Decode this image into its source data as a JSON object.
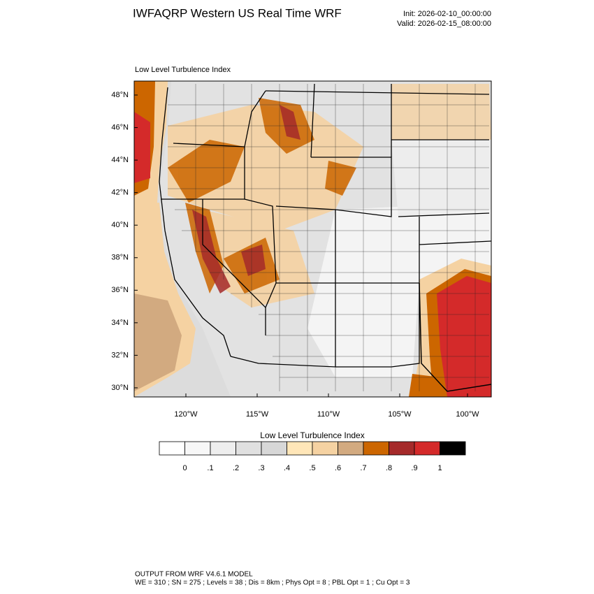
{
  "header": {
    "title": "IWFAQRP Western US Real Time WRF",
    "init": "Init: 2026-02-10_00:00:00",
    "valid": "Valid: 2026-02-15_08:00:00"
  },
  "panel": {
    "title": "Low Level Turbulence Index",
    "lat_labels": [
      "48°N",
      "46°N",
      "44°N",
      "42°N",
      "40°N",
      "38°N",
      "36°N",
      "34°N",
      "32°N",
      "30°N"
    ],
    "lon_labels": [
      "120°W",
      "115°W",
      "110°W",
      "105°W",
      "100°W"
    ]
  },
  "colorbar": {
    "title": "Low Level Turbulence Index",
    "labels": [
      "0",
      ".1",
      ".2",
      ".3",
      ".4",
      ".5",
      ".6",
      ".7",
      ".8",
      ".9",
      "1"
    ],
    "colors": [
      "#ffffff",
      "#f7f7f7",
      "#eeeeee",
      "#e0e0e0",
      "#d7d7d7",
      "#ffe6b8",
      "#f5d2a2",
      "#d2aa80",
      "#cc6600",
      "#a52a2a",
      "#d42a2a",
      "#000000"
    ]
  },
  "footer": {
    "line1": "OUTPUT FROM WRF V4.6.1 MODEL",
    "line2": "WE = 310 ; SN = 275 ; Levels = 38 ; Dis = 8km ; Phys Opt = 8 ; PBL Opt = 1 ; Cu Opt = 3"
  }
}
